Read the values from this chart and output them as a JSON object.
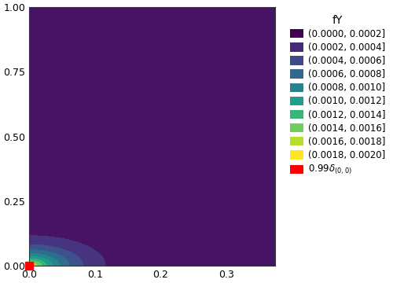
{
  "title": "fY",
  "xlim": [
    0.0,
    0.375
  ],
  "ylim": [
    0.0,
    1.0
  ],
  "xticks": [
    0.0,
    0.1,
    0.2,
    0.3
  ],
  "yticks": [
    0.0,
    0.25,
    0.5,
    0.75,
    1.0
  ],
  "legend_labels": [
    "(0.0000, 0.0002]",
    "(0.0002, 0.0004]",
    "(0.0004, 0.0006]",
    "(0.0006, 0.0008]",
    "(0.0008, 0.0010]",
    "(0.0010, 0.0012]",
    "(0.0012, 0.0014]",
    "(0.0014, 0.0016]",
    "(0.0016, 0.0018]",
    "(0.0018, 0.0020]"
  ],
  "levels": [
    0.0,
    0.0002,
    0.0004,
    0.0006,
    0.0008,
    0.001,
    0.0012,
    0.0014,
    0.0016,
    0.0018,
    0.002
  ],
  "red_point": [
    0.0,
    0.0
  ],
  "red_label": "0.99$\\delta_{(0,0)}$",
  "red_color": "#FF0000",
  "background_color": "#ffffff",
  "grid_color": "#d3d3d3",
  "amplitude": 0.00205,
  "decay": 20.0,
  "nx": 600,
  "ny": 600
}
